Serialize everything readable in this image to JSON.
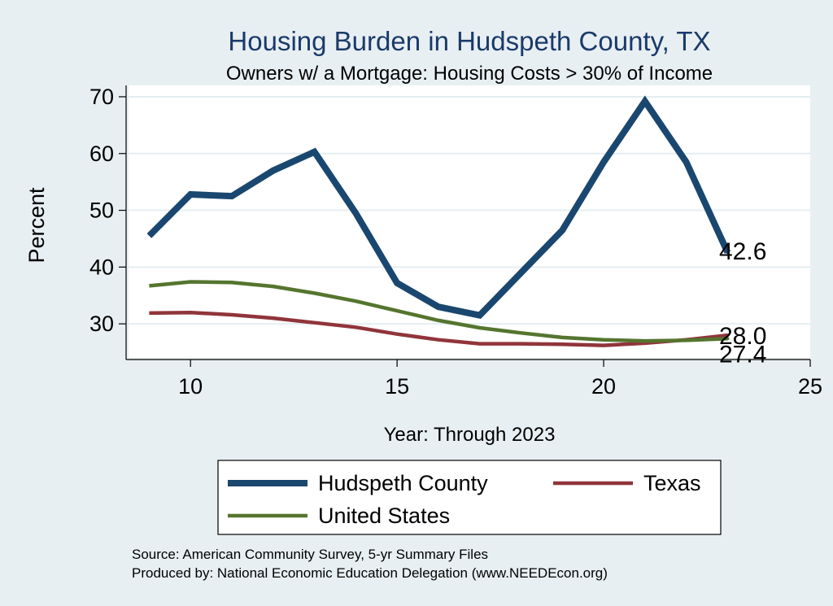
{
  "chart_data": {
    "type": "line",
    "title": "Housing Burden in Hudspeth County, TX",
    "subtitle": "Owners w/ a Mortgage: Housing Costs > 30% of Income",
    "xlabel": "Year: Through 2023",
    "ylabel": "Percent",
    "xlim": [
      8.5,
      25
    ],
    "ylim": [
      24,
      72
    ],
    "xticks": [
      10,
      15,
      20,
      25
    ],
    "yticks": [
      30,
      40,
      50,
      60,
      70
    ],
    "grid": true,
    "legend_position": "bottom",
    "x": [
      9,
      10,
      11,
      12,
      13,
      14,
      15,
      16,
      17,
      18,
      19,
      20,
      21,
      22,
      23
    ],
    "series": [
      {
        "name": "Hudspeth County",
        "color": "#1a476f",
        "values": [
          45.5,
          52.8,
          52.5,
          57.0,
          60.3,
          49.5,
          37.2,
          33.0,
          31.5,
          39.0,
          46.5,
          58.5,
          69.2,
          58.5,
          42.6
        ],
        "end_label": "42.6"
      },
      {
        "name": "Texas",
        "color": "#90353b",
        "values": [
          31.9,
          32.0,
          31.6,
          31.0,
          30.2,
          29.4,
          28.2,
          27.2,
          26.5,
          26.5,
          26.4,
          26.2,
          26.6,
          27.2,
          28.0
        ],
        "end_label": "28.0"
      },
      {
        "name": "United States",
        "color": "#55752f",
        "values": [
          36.7,
          37.4,
          37.3,
          36.6,
          35.4,
          34.0,
          32.3,
          30.6,
          29.3,
          28.4,
          27.6,
          27.2,
          27.0,
          27.1,
          27.4
        ],
        "end_label": "27.4"
      }
    ]
  },
  "footer": {
    "source": "Source: American Community Survey, 5-yr Summary Files",
    "produced_by": "Produced by: National Economic Education Delegation (www.NEEDEcon.org)"
  }
}
